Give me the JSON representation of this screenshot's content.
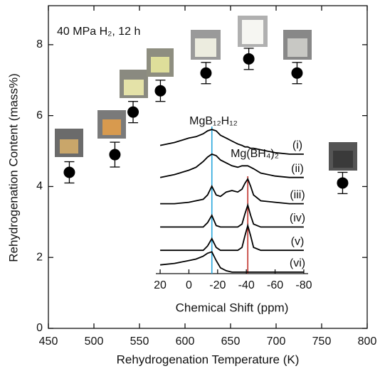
{
  "chart_data": [
    {
      "type": "scatter",
      "annotation": "40 MPa H₂, 12 h",
      "x_label": "Rehydrogenation Temperature (K)",
      "y_label": "Rehydrogenation Content (mass%)",
      "x": [
        473,
        523,
        543,
        573,
        623,
        670,
        723,
        773
      ],
      "series": [
        {
          "color": "#000000",
          "values": [
            4.4,
            4.9,
            6.1,
            6.7,
            7.2,
            7.6,
            7.2,
            4.1
          ],
          "errors": [
            0.3,
            0.35,
            0.3,
            0.3,
            0.3,
            0.3,
            0.3,
            0.3
          ]
        }
      ],
      "xlim": [
        450,
        800
      ],
      "xticks": [
        450,
        500,
        550,
        600,
        650,
        700,
        750,
        800
      ],
      "ylim": [
        0,
        9.1
      ],
      "yticks": [
        0,
        2,
        4,
        6,
        8
      ]
    },
    {
      "type": "line",
      "x_label": "Chemical Shift (ppm)",
      "x": [
        20,
        10,
        0,
        -5,
        -10,
        -13,
        -16,
        -19,
        -22,
        -26,
        -30,
        -34,
        -37,
        -39,
        -41,
        -43,
        -45,
        -50,
        -60,
        -70,
        -80
      ],
      "series": [
        {
          "name": "(i)",
          "color": "#000000",
          "values": [
            8.8,
            9.0,
            9.3,
            9.4,
            9.6,
            9.8,
            9.9,
            9.8,
            9.5,
            9.3,
            9.1,
            8.9,
            8.8,
            8.7,
            8.7,
            8.6,
            8.6,
            8.5,
            8.3,
            8.2,
            8.2
          ]
        },
        {
          "name": "(ii)",
          "color": "#000000",
          "values": [
            6.6,
            6.8,
            7.1,
            7.3,
            7.7,
            8.0,
            8.2,
            8.1,
            7.8,
            7.6,
            7.4,
            7.3,
            7.4,
            7.4,
            7.4,
            7.3,
            7.2,
            6.9,
            6.7,
            6.6,
            6.6
          ]
        },
        {
          "name": "(iii)",
          "color": "#000000",
          "values": [
            4.8,
            4.8,
            4.9,
            5.0,
            5.1,
            5.4,
            6.0,
            5.4,
            5.3,
            5.6,
            5.7,
            5.6,
            5.8,
            6.2,
            6.5,
            6.0,
            5.4,
            5.0,
            4.9,
            4.8,
            4.8
          ]
        },
        {
          "name": "(iv)",
          "color": "#000000",
          "values": [
            3.2,
            3.2,
            3.2,
            3.2,
            3.2,
            3.5,
            4.0,
            3.3,
            3.2,
            3.2,
            3.2,
            3.2,
            3.4,
            4.1,
            4.7,
            4.0,
            3.4,
            3.2,
            3.2,
            3.2,
            3.2
          ]
        },
        {
          "name": "(v)",
          "color": "#000000",
          "values": [
            1.6,
            1.6,
            1.6,
            1.6,
            1.6,
            1.9,
            2.4,
            1.8,
            1.6,
            1.6,
            1.6,
            1.6,
            1.8,
            2.6,
            3.3,
            2.6,
            1.8,
            1.6,
            1.6,
            1.6,
            1.6
          ]
        },
        {
          "name": "(vi)",
          "color": "#000000",
          "values": [
            0.6,
            0.7,
            0.9,
            1.0,
            1.2,
            1.4,
            1.5,
            0.9,
            0.4,
            0.2,
            0.1,
            0.1,
            0.1,
            0.1,
            0.1,
            0.1,
            0.1,
            0.1,
            0.1,
            0.1,
            0.1
          ]
        }
      ],
      "markers": [
        {
          "label": "MgB₁₂H₁₂",
          "x": -16,
          "color": "#2aa6dc"
        },
        {
          "label": "Mg(BH₄)₂",
          "x": -41,
          "color": "#c0302a"
        }
      ],
      "xlim": [
        23,
        -83
      ],
      "xticks": [
        20,
        0,
        -20,
        -40,
        -60,
        -80
      ],
      "ylim": [
        0,
        10
      ]
    }
  ]
}
